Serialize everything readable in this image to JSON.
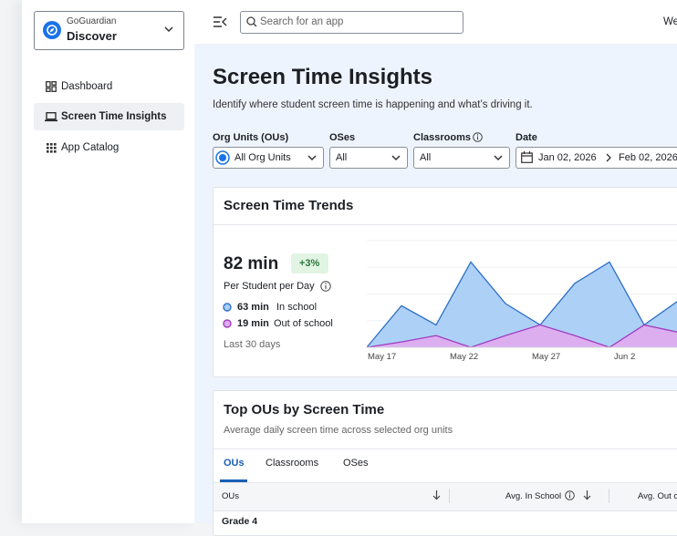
{
  "sidebar": {
    "brand": "GoGuardian",
    "product": "Discover",
    "nav": [
      "Dashboard",
      "Screen Time Insights",
      "App Catalog"
    ]
  },
  "topbar": {
    "search_placeholder": "Search for an app",
    "user": "We"
  },
  "page": {
    "title": "Screen Time Insights",
    "subtitle": "Identify where student screen time is happening and what’s driving it."
  },
  "filters": [
    {
      "label": "Org Units (OUs)",
      "value": "All Org Units"
    },
    {
      "label": "OSes",
      "value": "All"
    },
    {
      "label": "Classrooms",
      "value": "All"
    },
    {
      "label": "Date",
      "start": "Jan 02, 2026",
      "end": "Feb 02, 2026"
    }
  ],
  "trends": {
    "title": "Screen Time Trends",
    "total": "82 min",
    "change": "+3%",
    "per": "Per Student per Day",
    "legend_values": [
      "63 min",
      "19 min"
    ],
    "period": "Last 30 days"
  },
  "chart_data": {
    "type": "area",
    "categories": [
      null,
      null,
      null,
      null,
      null,
      null,
      null,
      null,
      null,
      null
    ],
    "x_labels": [
      "May 17",
      "May 22",
      "May 27",
      "Jun 2"
    ],
    "ylim": [
      0,
      100
    ],
    "grid": true,
    "series": [
      {
        "name": "In school",
        "color": "#2f6fc8",
        "fill": "#a9cff5",
        "values": [
          0,
          39,
          21,
          80,
          41,
          21,
          60,
          80,
          21,
          44
        ]
      },
      {
        "name": "Out of school",
        "color": "#a03cc0",
        "fill": "#deacef",
        "values": [
          0,
          5,
          11,
          0,
          11,
          21,
          11,
          0,
          21,
          14
        ]
      }
    ]
  },
  "top_ous": {
    "title": "Top OUs by Screen Time",
    "subtitle": "Average daily screen time across selected org units",
    "tabs": [
      "OUs",
      "Classrooms",
      "OSes"
    ],
    "table": {
      "columns": [
        "OUs",
        "Avg. In School",
        "Avg. Out of School"
      ],
      "rows": [
        [
          "Grade 4"
        ]
      ]
    }
  }
}
